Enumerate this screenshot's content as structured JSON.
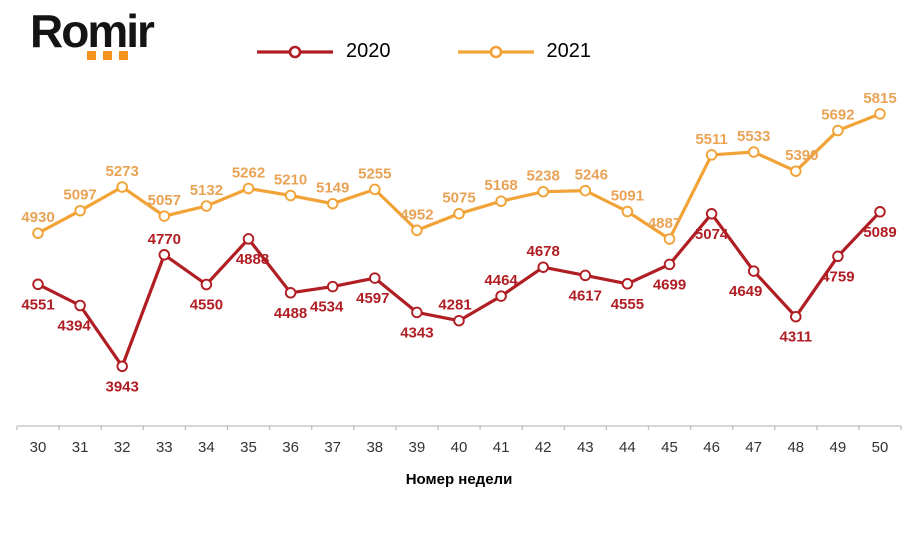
{
  "logo": {
    "text": "Romir",
    "dots_color": "#F6921E",
    "text_color": "#141414"
  },
  "legend": {
    "items": [
      {
        "label": "2020",
        "color": "#B01E24"
      },
      {
        "label": "2021",
        "color": "#F2A338"
      }
    ]
  },
  "axis": {
    "line_color": "#BFBFBF",
    "tick_text_color": "#333333"
  },
  "chart_data": {
    "type": "line",
    "x": [
      30,
      31,
      32,
      33,
      34,
      35,
      36,
      37,
      38,
      39,
      40,
      41,
      42,
      43,
      44,
      45,
      46,
      47,
      48,
      49,
      50
    ],
    "xlabel": "Номер недели",
    "ylim": [
      3500,
      6000
    ],
    "grid": false,
    "legend_position": "top",
    "series": [
      {
        "name": "2020",
        "color": "#B01E24",
        "label_color": "#B01E24",
        "values": [
          4551,
          4394,
          3943,
          4770,
          4550,
          4888,
          4488,
          4534,
          4597,
          4343,
          4281,
          4464,
          4678,
          4617,
          4555,
          4699,
          5074,
          4649,
          4311,
          4759,
          5089
        ],
        "label_pos": [
          "below",
          "below",
          "below",
          "above",
          "below",
          "below",
          "below",
          "below",
          "below",
          "below",
          "above",
          "above",
          "above",
          "below",
          "below",
          "below",
          "below",
          "below",
          "below",
          "below",
          "below"
        ],
        "label_dx": [
          0,
          -6,
          0,
          0,
          0,
          4,
          0,
          -6,
          -2,
          0,
          -4,
          0,
          0,
          0,
          0,
          0,
          0,
          -8,
          0,
          0,
          0
        ]
      },
      {
        "name": "2021",
        "color": "#F2A338",
        "label_color": "#E9A356",
        "values": [
          4930,
          5097,
          5273,
          5057,
          5132,
          5262,
          5210,
          5149,
          5255,
          4952,
          5075,
          5168,
          5238,
          5246,
          5091,
          4887,
          5511,
          5533,
          5390,
          5692,
          5815
        ],
        "label_pos": [
          "above",
          "above",
          "above",
          "above",
          "above",
          "above",
          "above",
          "above",
          "above",
          "above",
          "above",
          "above",
          "above",
          "above",
          "above",
          "above",
          "above",
          "above",
          "above",
          "above",
          "above"
        ],
        "label_dx": [
          0,
          0,
          0,
          0,
          0,
          0,
          0,
          0,
          0,
          0,
          0,
          0,
          0,
          6,
          0,
          -5,
          0,
          0,
          6,
          0,
          0
        ]
      }
    ]
  }
}
